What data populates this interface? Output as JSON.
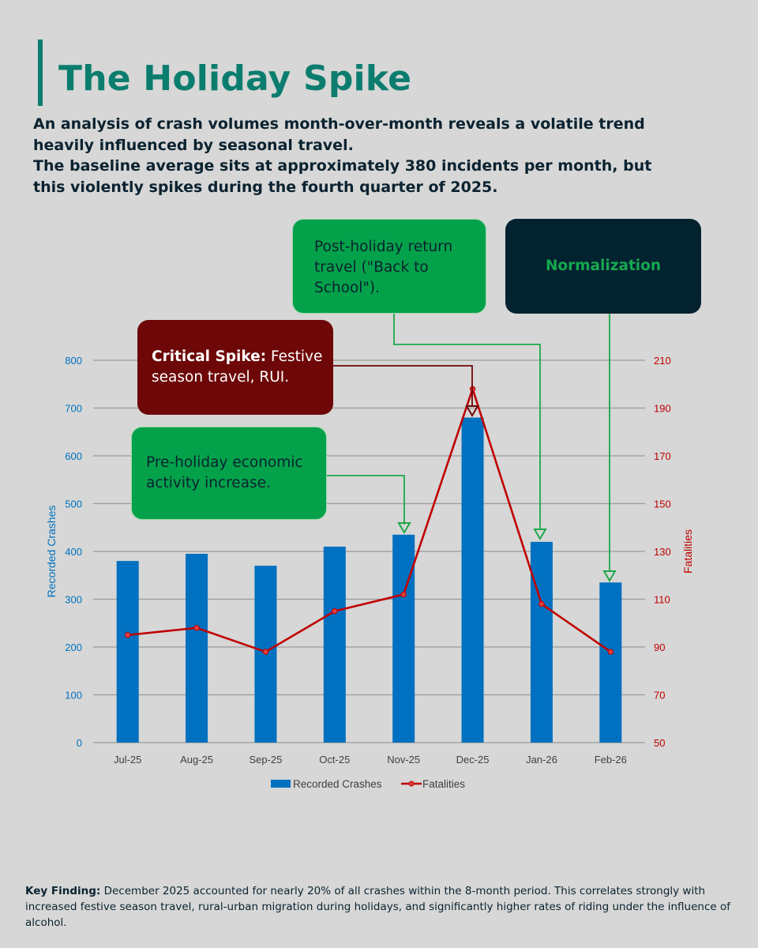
{
  "header": {
    "title": "The Holiday Spike",
    "intro_line1": "An analysis of crash volumes month-over-month reveals a volatile trend heavily influenced by seasonal travel.",
    "intro_line2": "The baseline average sits at approximately 380 incidents per month, but this violently spikes during the fourth quarter of 2025."
  },
  "chart_data": {
    "type": "bar",
    "categories": [
      "Jul-25",
      "Aug-25",
      "Sep-25",
      "Oct-25",
      "Nov-25",
      "Dec-25",
      "Jan-26",
      "Feb-26"
    ],
    "series": [
      {
        "name": "Recorded Crashes",
        "type": "bar",
        "axis": "left",
        "color": "#0070c0",
        "values": [
          380,
          395,
          370,
          410,
          435,
          680,
          420,
          335
        ]
      },
      {
        "name": "Fatalities",
        "type": "line",
        "axis": "right",
        "color": "#c00000",
        "values": [
          95,
          98,
          88,
          105,
          112,
          198,
          108,
          88
        ]
      }
    ],
    "ylabel": "Recorded Crashes",
    "ylabel_right": "Fatalities",
    "ylim": [
      0,
      800
    ],
    "yticks": [
      0,
      100,
      200,
      300,
      400,
      500,
      600,
      700,
      800
    ],
    "ylim_right": [
      50,
      210
    ],
    "yticks_right": [
      50,
      70,
      90,
      110,
      130,
      150,
      170,
      190,
      210
    ],
    "grid": true,
    "legend": "bottom",
    "left_axis_color": "#0070c0",
    "right_axis_color": "#c00000"
  },
  "annotations": {
    "pre_holiday": "Pre-holiday economic activity increase.",
    "critical_label": "Critical Spike:",
    "critical_text": "Festive season travel, RUI.",
    "post_holiday": "Post-holiday return travel (\"Back to School\").",
    "normalization": "Normalization"
  },
  "footer": {
    "label": "Key Finding:",
    "text": "December 2025 accounted for nearly 20% of all crashes within the 8-month period. This correlates strongly with increased festive season travel, rural-urban migration during holidays, and significantly higher rates of riding under the influence of alcohol."
  },
  "colors": {
    "accent": "#0b7d6e",
    "callout_green": "#03a24a",
    "callout_red": "#6e0707",
    "callout_dark": "#032230",
    "arrow_green": "#1fa84a",
    "arrow_red": "#6e0707"
  }
}
